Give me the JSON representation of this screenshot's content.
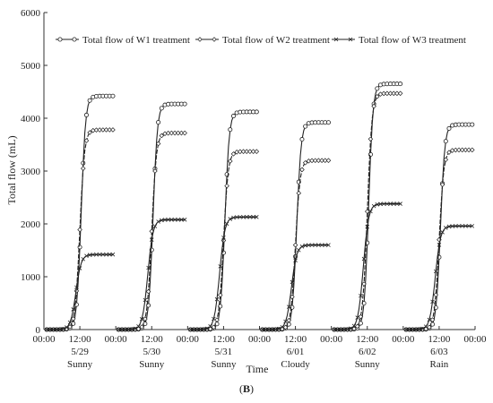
{
  "chart_data": {
    "type": "line",
    "title": "",
    "xlabel": "Time",
    "ylabel": "Total flow (mL)",
    "ylim": [
      0,
      6000
    ],
    "y_ticks": [
      0,
      1000,
      2000,
      3000,
      4000,
      5000,
      6000
    ],
    "grid": false,
    "legend": "top",
    "x_tick_labels": [
      "00:00",
      "12:00",
      "00:00",
      "12:00",
      "00:00",
      "12:00",
      "00:00",
      "12:00",
      "00:00",
      "12:00",
      "00:00",
      "12:00",
      "00:00"
    ],
    "days": [
      {
        "date": "5/29",
        "weather": "Sunny"
      },
      {
        "date": "5/30",
        "weather": "Sunny"
      },
      {
        "date": "5/31",
        "weather": "Sunny"
      },
      {
        "date": "6/01",
        "weather": "Cloudy"
      },
      {
        "date": "6/02",
        "weather": "Sunny"
      },
      {
        "date": "6/03",
        "weather": "Rain"
      }
    ],
    "series": [
      {
        "name": "Total flow of W1 treatment",
        "marker": "circle",
        "color": "#222222",
        "daily_max": [
          4420,
          4270,
          4120,
          3920,
          4650,
          3880
        ]
      },
      {
        "name": "Total flow of W2 treatment",
        "marker": "diamond",
        "color": "#222222",
        "daily_max": [
          3780,
          3720,
          3370,
          3200,
          4470,
          3400
        ]
      },
      {
        "name": "Total flow of W3 treatment",
        "marker": "cross",
        "color": "#222222",
        "daily_max": [
          1420,
          2080,
          2130,
          1600,
          2380,
          1960
        ]
      }
    ]
  },
  "caption": {
    "open": "(",
    "letter": "B",
    "close": ")"
  }
}
